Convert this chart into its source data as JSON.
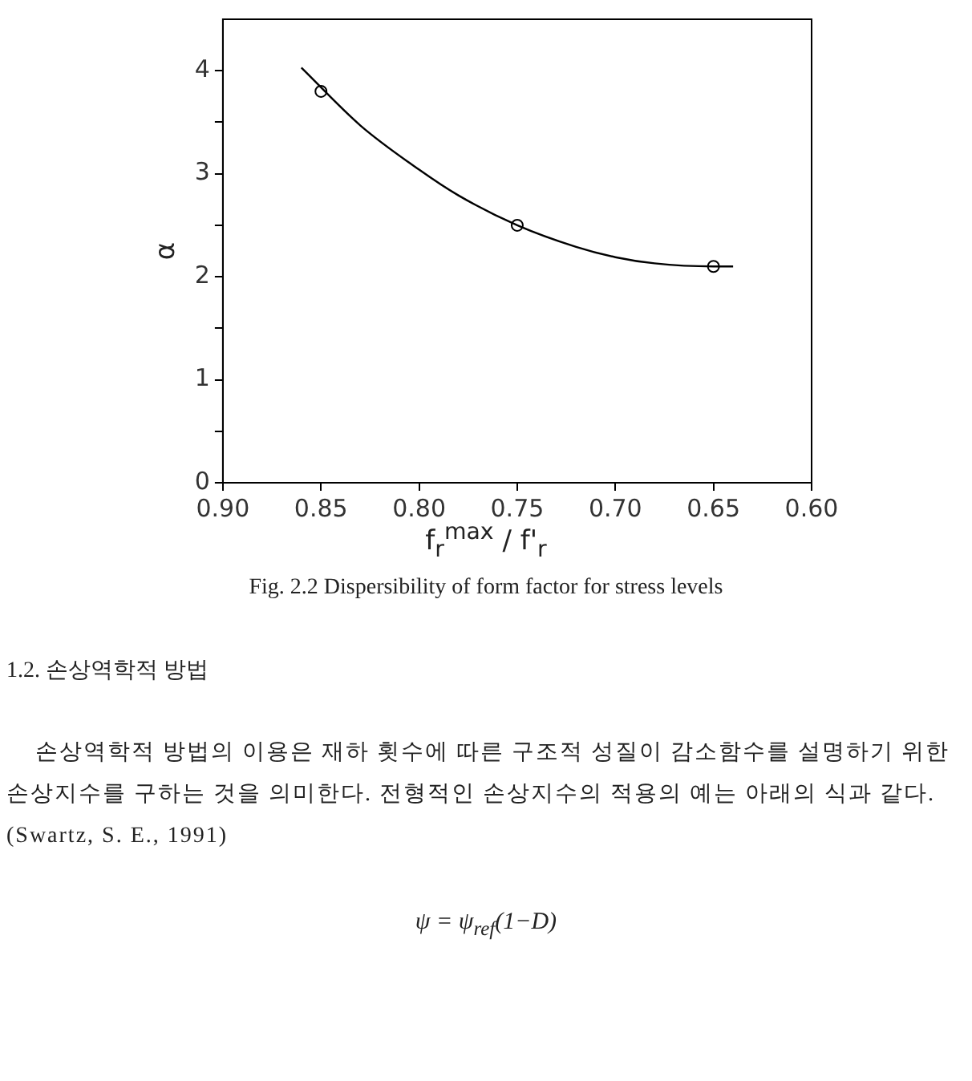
{
  "chart_data": {
    "type": "scatter",
    "xlabel": "f$_{r}$$^{max}$ / f'$_{r}$",
    "ylabel": "α",
    "xlim": [
      0.9,
      0.6
    ],
    "xticks": [
      {
        "value": 0.9,
        "label": "0.90"
      },
      0.85,
      {
        "value": 0.8,
        "label": "0.80"
      },
      0.75,
      {
        "value": 0.7,
        "label": "0.70"
      },
      0.65,
      {
        "value": 0.6,
        "label": "0.60"
      }
    ],
    "ylim": [
      0,
      4.5
    ],
    "yticks": [
      0,
      {
        "value": 0.5,
        "label": null
      },
      1,
      {
        "value": 1.5,
        "label": null
      },
      2,
      {
        "value": 2.5,
        "label": null
      },
      3,
      {
        "value": 3.5,
        "label": null
      },
      4
    ],
    "grid": false,
    "legend": false,
    "series": [
      {
        "type": "scatter",
        "color": "#000000",
        "marker": "circle",
        "x": [
          0.85,
          0.75,
          0.65
        ],
        "values": [
          3.8,
          2.5,
          2.1
        ]
      },
      {
        "type": "line",
        "color": "#000000",
        "marker": "none",
        "line_style": "solid",
        "x": [
          0.86,
          0.83,
          0.8,
          0.78,
          0.75,
          0.72,
          0.7,
          0.68,
          0.65,
          0.64
        ],
        "values": [
          4.03,
          3.47,
          3.04,
          2.79,
          2.5,
          2.29,
          2.19,
          2.13,
          2.1,
          2.1
        ]
      }
    ],
    "annotations": [
      "Fig. 2.2 Dispersibility of form factor for stress levels",
      "1.2. 손상역학적 방법",
      "손상역학적 방법의 이용은 재하 횟수에 따른 구조적 성질이 감소함수를 설명하기 위한 손상지수를 구하는 것을 의미한다. 전형적인 손상지수의 적용의 예는 아래의 식과 같다.(Swartz, S. E., 1991)",
      "ψ = ψ$_{ref}$(1−D)"
    ]
  }
}
